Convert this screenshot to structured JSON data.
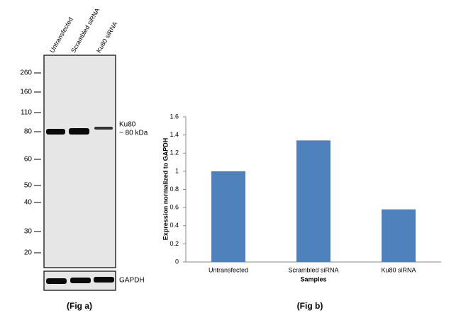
{
  "blot": {
    "lanes": [
      "Untransfected",
      "Scrambled siRNA",
      "Ku80 siRNA"
    ],
    "markers": [
      260,
      160,
      110,
      80,
      60,
      50,
      40,
      30,
      20
    ],
    "target_label": "Ku80",
    "target_size": "~ 80 kDa",
    "loading_control": "GAPDH",
    "caption": "(Fig a)"
  },
  "chart_data": {
    "type": "bar",
    "categories": [
      "Untransfected",
      "Scrambled siRNA",
      "Ku80 siRNA"
    ],
    "values": [
      1.0,
      1.34,
      0.58
    ],
    "color": "#4f81bd",
    "x_label": "Samples",
    "y_label": "Expression normalized to GAPDH",
    "ylim": [
      0,
      1.6
    ],
    "yticks": [
      0,
      0.2,
      0.4,
      0.6,
      0.8,
      1,
      1.2,
      1.4,
      1.6
    ],
    "grid": false,
    "caption": "(Fig b)"
  }
}
